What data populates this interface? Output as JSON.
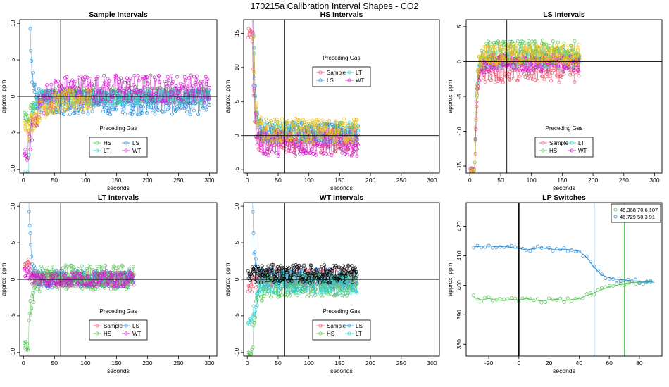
{
  "page_title": "170215a   Calibration Interval Shapes - CO2",
  "colors": {
    "Sample": "#e8566e",
    "HS": "#57c457",
    "LS": "#2f8fd8",
    "LT": "#36cfcf",
    "WT": "#d020cc",
    "black": "#000000",
    "yellow": "#f2c21a"
  },
  "chart_data": [
    {
      "type": "scatter",
      "title": "Sample Intervals",
      "xlabel": "seconds",
      "ylabel": "approx. ppm",
      "xlim": [
        -6,
        312
      ],
      "ylim": [
        -10.5,
        10.5
      ],
      "xticks": [
        0,
        50,
        100,
        150,
        200,
        250,
        300
      ],
      "yticks": [
        -10,
        -5,
        0,
        5,
        10
      ],
      "vline": 60,
      "hline": 0,
      "legend": {
        "title": "Preceding Gas",
        "position": "bottom-center",
        "entries": [
          "HS",
          "LS",
          "LT",
          "WT"
        ],
        "columns": 2
      },
      "series": [
        {
          "name": "HS",
          "color_key": "HS",
          "n": 300,
          "plateau": [
            -1,
            1.2
          ],
          "transient": {
            "start": -3,
            "tau": 12
          }
        },
        {
          "name": "LS",
          "color_key": "LS",
          "n": 300,
          "plateau": [
            -2.5,
            0.8
          ],
          "transient": {
            "start": 18,
            "tau": 4
          }
        },
        {
          "name": "LT",
          "color_key": "LT",
          "n": 300,
          "plateau": [
            -1,
            1
          ],
          "transient": {
            "start": -11,
            "tau": 4
          }
        },
        {
          "name": "WT",
          "color_key": "WT",
          "n": 300,
          "plateau": [
            -1,
            3
          ],
          "transient": {
            "start": -8,
            "tau": 15
          }
        },
        {
          "name": "",
          "color_key": "yellow",
          "n": 110,
          "plateau": [
            -2,
            1
          ],
          "transient": {
            "start": -4,
            "tau": 18
          }
        }
      ]
    },
    {
      "type": "scatter",
      "title": "HS Intervals",
      "xlabel": "seconds",
      "ylabel": "approx. ppm",
      "xlim": [
        -6,
        312
      ],
      "ylim": [
        -5.5,
        17
      ],
      "xticks": [
        0,
        50,
        100,
        150,
        200,
        250,
        300
      ],
      "yticks": [
        -5,
        0,
        5,
        10,
        15
      ],
      "vline": 60,
      "hline": 0,
      "legend": {
        "title": "Preceding Gas",
        "position": "top-center",
        "entries": [
          "Sample",
          "LT",
          "LS",
          "WT"
        ],
        "columns": 2
      },
      "series": [
        {
          "name": "Sample",
          "color_key": "Sample",
          "n": 180,
          "plateau": [
            -2.5,
            1
          ],
          "transient": {
            "start": 15,
            "tau": 3
          }
        },
        {
          "name": "LT",
          "color_key": "LT",
          "n": 180,
          "plateau": [
            -1,
            2
          ],
          "transient": {
            "start": 30,
            "tau": 3
          }
        },
        {
          "name": "LS",
          "color_key": "LS",
          "n": 180,
          "plateau": [
            -1,
            2
          ],
          "transient": {
            "start": 30,
            "tau": 3
          }
        },
        {
          "name": "WT",
          "color_key": "WT",
          "n": 180,
          "plateau": [
            -3,
            1
          ],
          "transient": {
            "start": 20,
            "tau": 3
          }
        },
        {
          "name": "",
          "color_key": "yellow",
          "n": 180,
          "plateau": [
            -1,
            2.5
          ],
          "transient": {
            "start": 25,
            "tau": 3
          }
        }
      ]
    },
    {
      "type": "scatter",
      "title": "LS Intervals",
      "xlabel": "seconds",
      "ylabel": "approx. ppm",
      "xlim": [
        -6,
        312
      ],
      "ylim": [
        -16,
        6
      ],
      "xticks": [
        0,
        50,
        100,
        150,
        200,
        250,
        300
      ],
      "yticks": [
        -15,
        -10,
        -5,
        0,
        5
      ],
      "vline": 60,
      "hline": 0,
      "legend": {
        "title": "Preceding Gas",
        "position": "bottom-center",
        "entries": [
          "Sample",
          "LT",
          "HS",
          "WT"
        ],
        "columns": 2
      },
      "series": [
        {
          "name": "Sample",
          "color_key": "Sample",
          "n": 178,
          "plateau": [
            -3,
            0.5
          ],
          "transient": {
            "start": -16,
            "tau": 3
          }
        },
        {
          "name": "LT",
          "color_key": "LT",
          "n": 178,
          "plateau": [
            -1,
            1.5
          ],
          "transient": {
            "start": -16,
            "tau": 3
          }
        },
        {
          "name": "HS",
          "color_key": "HS",
          "n": 178,
          "plateau": [
            -0.5,
            3
          ],
          "transient": {
            "start": -16,
            "tau": 3
          }
        },
        {
          "name": "WT",
          "color_key": "WT",
          "n": 178,
          "plateau": [
            -1.5,
            1
          ],
          "transient": {
            "start": -16,
            "tau": 3
          }
        },
        {
          "name": "",
          "color_key": "yellow",
          "n": 178,
          "plateau": [
            -0.5,
            2.5
          ],
          "transient": {
            "start": -16,
            "tau": 3
          }
        }
      ]
    },
    {
      "type": "scatter",
      "title": "LT Intervals",
      "xlabel": "seconds",
      "ylabel": "approx. ppm",
      "xlim": [
        -6,
        312
      ],
      "ylim": [
        -10.5,
        10.5
      ],
      "xticks": [
        0,
        50,
        100,
        150,
        200,
        250,
        300
      ],
      "yticks": [
        -10,
        -5,
        0,
        5,
        10
      ],
      "vline": 60,
      "hline": 0,
      "legend": {
        "title": "Preceding Gas",
        "position": "bottom-center",
        "entries": [
          "Sample",
          "LS",
          "HS",
          "WT"
        ],
        "columns": 2
      },
      "series": [
        {
          "name": "Sample",
          "color_key": "Sample",
          "n": 178,
          "plateau": [
            -1,
            1
          ],
          "transient": {
            "start": 2,
            "tau": 5
          }
        },
        {
          "name": "LS",
          "color_key": "LS",
          "n": 178,
          "plateau": [
            -1.2,
            1.2
          ],
          "transient": {
            "start": 14,
            "tau": 3
          }
        },
        {
          "name": "HS",
          "color_key": "HS",
          "n": 178,
          "plateau": [
            -1.5,
            2
          ],
          "transient": {
            "start": -9,
            "tau": 5
          }
        },
        {
          "name": "WT",
          "color_key": "WT",
          "n": 178,
          "plateau": [
            -1,
            1
          ],
          "transient": {
            "start": 1,
            "tau": 5
          }
        }
      ]
    },
    {
      "type": "scatter",
      "title": "WT Intervals",
      "xlabel": "seconds",
      "ylabel": "approx. ppm",
      "xlim": [
        -6,
        312
      ],
      "ylim": [
        -10.5,
        10.5
      ],
      "xticks": [
        0,
        50,
        100,
        150,
        200,
        250,
        300
      ],
      "yticks": [
        -10,
        -5,
        0,
        5,
        10
      ],
      "vline": 60,
      "hline": 0,
      "legend": {
        "title": "Preceding Gas",
        "position": "bottom-center",
        "entries": [
          "Sample",
          "LS",
          "HS",
          "LT"
        ],
        "columns": 2
      },
      "series": [
        {
          "name": "Sample",
          "color_key": "Sample",
          "n": 178,
          "plateau": [
            -1,
            1.5
          ],
          "transient": {
            "start": -1,
            "tau": 5
          }
        },
        {
          "name": "LS",
          "color_key": "LS",
          "n": 178,
          "plateau": [
            -1.5,
            1.5
          ],
          "transient": {
            "start": 12,
            "tau": 3
          }
        },
        {
          "name": "HS",
          "color_key": "HS",
          "n": 178,
          "plateau": [
            -2.5,
            1
          ],
          "transient": {
            "start": -10,
            "tau": 5
          }
        },
        {
          "name": "LT",
          "color_key": "LT",
          "n": 178,
          "plateau": [
            -2,
            1
          ],
          "transient": {
            "start": -6,
            "tau": 6
          }
        },
        {
          "name": "",
          "color_key": "black",
          "n": 178,
          "plateau": [
            -0.5,
            2
          ],
          "transient": {
            "start": 0.5,
            "tau": 2
          }
        }
      ]
    },
    {
      "type": "line",
      "title": "LP Switches",
      "xlabel": "seconds",
      "ylabel": "approx. ppm",
      "xlim": [
        -35,
        95
      ],
      "ylim": [
        376,
        428
      ],
      "xticks": [
        -20,
        0,
        20,
        40,
        60,
        80
      ],
      "yticks": [
        380,
        390,
        400,
        410,
        420
      ],
      "vline": 0,
      "legend": {
        "position": "top-right",
        "entries": [
          "46.368 70.6 107",
          "46.729 50.3 91"
        ]
      },
      "series": [
        {
          "name": "46.368 70.6 107",
          "color_key": "HS",
          "switch_x": 70,
          "x": [
            -30,
            -25,
            -20,
            -15,
            -10,
            -5,
            0,
            5,
            10,
            15,
            20,
            25,
            30,
            35,
            40,
            45,
            50,
            55,
            60,
            65,
            70,
            75,
            80,
            85,
            90
          ],
          "y": [
            396,
            395,
            395.5,
            395,
            394.8,
            395.2,
            395,
            395.5,
            395,
            394.7,
            395,
            395.2,
            394.8,
            395,
            395.5,
            396.5,
            397.5,
            398.5,
            399.5,
            400,
            400.5,
            401,
            401,
            401,
            401.5
          ]
        },
        {
          "name": "46.729 50.3 91",
          "color_key": "LS",
          "switch_x": 50,
          "x": [
            -30,
            -25,
            -20,
            -15,
            -10,
            -5,
            0,
            5,
            10,
            15,
            20,
            25,
            30,
            35,
            40,
            45,
            50,
            55,
            60,
            65,
            70,
            75,
            80,
            85,
            90
          ],
          "y": [
            413,
            413.2,
            413.4,
            413,
            413.2,
            412.8,
            412.5,
            412,
            412.4,
            412.8,
            412.4,
            412,
            412.2,
            412,
            411.5,
            409.5,
            406,
            403.5,
            402.5,
            402,
            401.8,
            401.5,
            401.3,
            401.2,
            401
          ]
        }
      ]
    }
  ]
}
